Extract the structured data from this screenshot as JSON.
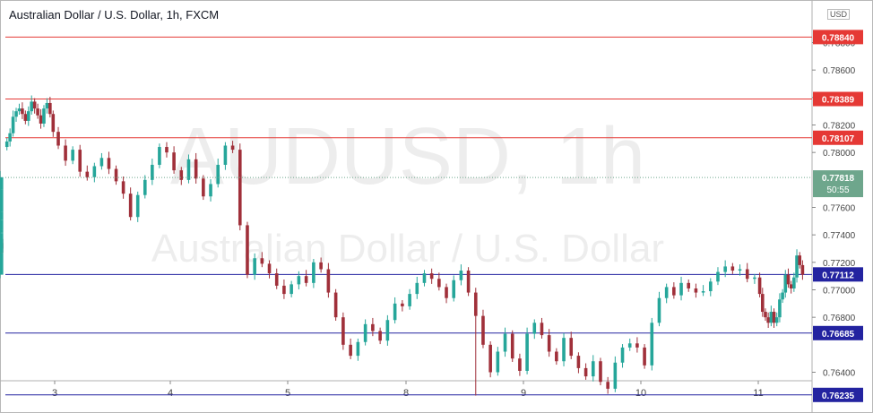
{
  "title": "Australian Dollar / U.S. Dollar, 1h, FXCM",
  "currency_badge": "USD",
  "watermark": {
    "symbol": "AUDUSD, 1h",
    "name": "Australian Dollar / U.S. Dollar"
  },
  "colors": {
    "up": "#26a69a",
    "down": "#a0303a",
    "resistance": "#e53935",
    "support": "#2323a0",
    "last_price": "#6ea68c"
  },
  "chart_data": {
    "type": "candlestick",
    "title": "Australian Dollar / U.S. Dollar, 1h, FXCM",
    "x_ticks": [
      "3",
      "4",
      "5",
      "8",
      "9",
      "10",
      "11"
    ],
    "y_ticks": [
      "0.78800",
      "0.78600",
      "0.78400",
      "0.78200",
      "0.78000",
      "0.77600",
      "0.77400",
      "0.77200",
      "0.77000",
      "0.76800",
      "0.76400"
    ],
    "ylim": [
      0.761,
      0.7895
    ],
    "resistance_levels": [
      "0.78840",
      "0.78389",
      "0.78107"
    ],
    "support_levels": [
      "0.77112",
      "0.76685",
      "0.76235"
    ],
    "last_price": "0.77818",
    "countdown": "50:55",
    "legend": "none",
    "grid": false,
    "close_path": [
      [
        0.7808,
        0.7814,
        0.7826,
        0.783,
        0.7832,
        0.7828,
        0.7823,
        0.783,
        0.7837,
        0.7832,
        0.7827,
        0.7821,
        0.7832,
        0.7836,
        0.7828,
        0.7815
      ],
      [
        0.7805,
        0.7794,
        0.7802,
        0.7786,
        0.7782,
        0.779,
        0.7796,
        0.7788,
        0.7779,
        0.777,
        0.7753,
        0.7769,
        0.778,
        0.7791,
        0.7804,
        0.78
      ],
      [
        0.7787,
        0.778,
        0.7795,
        0.7781,
        0.7768,
        0.7777,
        0.7791,
        0.7805,
        0.7802,
        0.7747,
        0.7711,
        0.7723,
        0.7719,
        0.7712,
        0.7703,
        0.7697
      ],
      [
        0.7704,
        0.771,
        0.7705,
        0.772,
        0.7715,
        0.7698,
        0.768,
        0.766,
        0.7652,
        0.7662,
        0.7675,
        0.767,
        0.7663,
        0.7678,
        0.769,
        0.7688
      ],
      [
        0.7697,
        0.7705,
        0.7712,
        0.7708,
        0.7702,
        0.7694,
        0.7707,
        0.7714,
        0.7698,
        0.7681,
        0.766,
        0.764,
        0.7655,
        0.7668,
        0.765,
        0.7641
      ],
      [
        0.7668,
        0.7676,
        0.7667,
        0.7655,
        0.7648,
        0.7665,
        0.7652,
        0.7643,
        0.7637,
        0.7648,
        0.7633,
        0.7628,
        0.7647,
        0.7658,
        0.7661,
        0.7658
      ],
      [
        0.7645,
        0.7676,
        0.7694,
        0.7702,
        0.7696,
        0.7705,
        0.7701,
        0.7698,
        0.7699,
        0.7706,
        0.7713,
        0.7717,
        0.7714,
        0.7715,
        0.7708,
        0.7709
      ],
      [
        0.7697,
        0.7684,
        0.768,
        0.7676,
        0.7684,
        0.7676,
        0.768,
        0.7693,
        0.7698,
        0.7711,
        0.7704,
        0.7701,
        0.7709,
        0.7725,
        0.7718,
        0.7711
      ],
      [
        0.7715,
        0.7727,
        0.7734,
        0.7737,
        0.7735,
        0.7733,
        0.773,
        0.7734,
        0.7727,
        0.7741,
        0.7742,
        0.7744,
        0.7751,
        0.7757,
        0.7773,
        0.7782
      ]
    ]
  },
  "tooltip_note": ""
}
